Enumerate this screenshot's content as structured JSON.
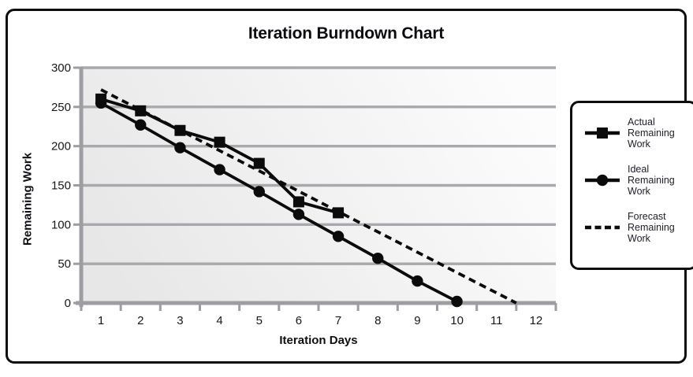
{
  "title": "Iteration Burndown Chart",
  "chart_data": {
    "type": "line",
    "title": "Iteration Burndown Chart",
    "xlabel": "Iteration Days",
    "ylabel": "Remaining Work",
    "xticks": [
      1,
      2,
      3,
      4,
      5,
      6,
      7,
      8,
      9,
      10,
      11,
      12
    ],
    "yticks": [
      0,
      50,
      100,
      150,
      200,
      250,
      300
    ],
    "ylim": [
      0,
      300
    ],
    "xlim": [
      0.5,
      12.5
    ],
    "grid": "horizontal",
    "legend_position": "right",
    "series": [
      {
        "name": "Actual Remaining Work",
        "marker": "square",
        "line": "solid",
        "x": [
          1,
          2,
          3,
          4,
          5,
          6,
          7
        ],
        "y": [
          260,
          245,
          220,
          205,
          178,
          129,
          115
        ]
      },
      {
        "name": "Ideal Remaining Work",
        "marker": "circle",
        "line": "solid",
        "x": [
          1,
          2,
          3,
          4,
          5,
          6,
          7,
          8,
          9,
          10
        ],
        "y": [
          255,
          227,
          198,
          170,
          142,
          113,
          85,
          57,
          28,
          2
        ]
      },
      {
        "name": "Forecast Remaining Work",
        "marker": "none",
        "line": "dashed",
        "x": [
          1,
          11.5
        ],
        "y": [
          272,
          0
        ]
      }
    ]
  },
  "legend": {
    "items": [
      {
        "label": "Actual Remaining Work",
        "marker": "square-line"
      },
      {
        "label": "Ideal Remaining Work",
        "marker": "circle-line"
      },
      {
        "label": "Forecast Remaining Work",
        "marker": "dashed-line"
      }
    ]
  },
  "colors": {
    "line": "#0b0b0b",
    "grid": "#a8a8ad",
    "axis": "#9d9da2",
    "plot_bg_left": "#e7e7e7",
    "plot_bg_right": "#fcfcfc",
    "border": "#0e0e0e"
  }
}
